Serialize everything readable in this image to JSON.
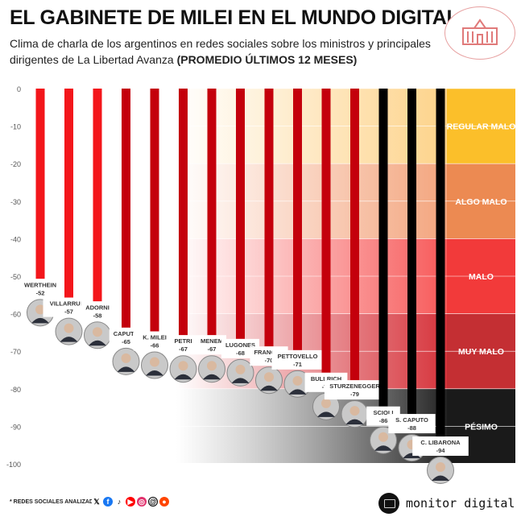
{
  "header": {
    "title": "EL GABINETE DE MILEI EN EL MUNDO DIGITAL",
    "subtitle": "Clima de charla de los argentinos en redes sociales sobre los ministros y principales dirigentes de La Libertad Avanza",
    "subtitle_bold": "(PROMEDIO ÚLTIMOS 12 MESES)"
  },
  "chart_data": {
    "type": "bar",
    "title": "EL GABINETE DE MILEI EN EL MUNDO DIGITAL",
    "ylim": [
      -100,
      0
    ],
    "yticks": [
      0,
      -10,
      -20,
      -30,
      -40,
      -50,
      -60,
      -70,
      -80,
      -90,
      -100
    ],
    "categories": [
      "WERTHEIN",
      "VILLARRUEL",
      "ADORNI",
      "CAPUTO",
      "K. MILEI",
      "PETRI",
      "MENEM",
      "LUGONES",
      "FRANCOS",
      "PETTOVELLO",
      "BULLRICH",
      "STURZENEGGER",
      "SCIOLI",
      "S. CAPUTO",
      "C. LIBARONA"
    ],
    "values": [
      -52,
      -57,
      -58,
      -65,
      -66,
      -67,
      -67,
      -68,
      -70,
      -71,
      -77,
      -79,
      -86,
      -88,
      -94
    ],
    "bands": [
      {
        "label": "REGULAR MALO",
        "from": 0,
        "to": -20,
        "color": "#fbbf2a"
      },
      {
        "label": "ALGO MALO",
        "from": -20,
        "to": -40,
        "color": "#ec8a52"
      },
      {
        "label": "MALO",
        "from": -40,
        "to": -60,
        "color": "#f23a3a"
      },
      {
        "label": "MUY MALO",
        "from": -60,
        "to": -80,
        "color": "#c42f33"
      },
      {
        "label": "PÉSIMO",
        "from": -80,
        "to": -100,
        "color": "#1a1a1a"
      }
    ],
    "colors": {
      "bright": "#f3161b",
      "dark": "#c4000c",
      "black": "#000000"
    }
  },
  "footer": {
    "note": "* REDES SOCIALES ANALIZADAS",
    "social_icons": [
      "x-icon",
      "facebook-icon",
      "tiktok-icon",
      "youtube-icon",
      "instagram-icon",
      "threads-icon",
      "reddit-icon"
    ],
    "brand": "monitor digital"
  }
}
